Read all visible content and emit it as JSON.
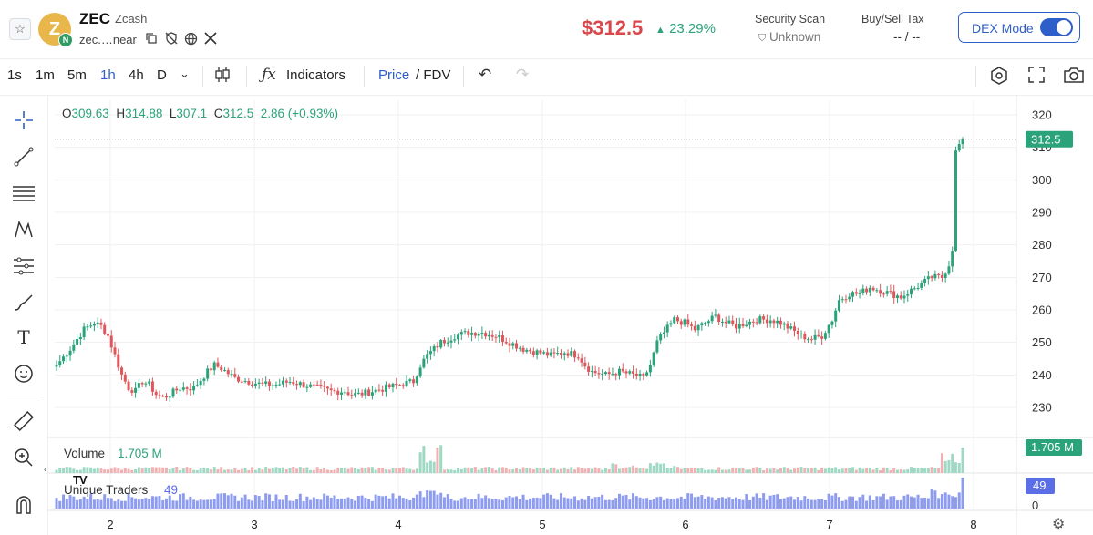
{
  "header": {
    "symbol": "ZEC",
    "name": "Zcash",
    "logo_letter": "Z",
    "chain_badge": "N",
    "address": "zec.…near",
    "price": "$312.5",
    "change": "23.29%",
    "change_arrow": "▲",
    "security_label": "Security Scan",
    "security_value": "Unknown",
    "tax_label": "Buy/Sell Tax",
    "tax_value": "-- / --",
    "dex_mode_label": "DEX Mode",
    "dex_mode_on": true,
    "icons": [
      "copy-icon",
      "shield-off-icon",
      "globe-icon",
      "x-twitter-icon"
    ]
  },
  "toolbar": {
    "timeframes": [
      "1s",
      "1m",
      "5m",
      "1h",
      "4h",
      "D"
    ],
    "active_timeframe": "1h",
    "indicators_label": "Indicators",
    "price_label": "Price",
    "slash": "/",
    "fdv_label": "FDV"
  },
  "legend": {
    "open_key": "O",
    "open": "309.63",
    "high_key": "H",
    "high": "314.88",
    "low_key": "L",
    "low": "307.1",
    "close_key": "C",
    "close": "312.5",
    "change": "2.86 (+0.93%)"
  },
  "volume": {
    "label": "Volume",
    "value": "1.705 M",
    "axis_badge": "1.705 M"
  },
  "traders": {
    "label": "Unique Traders",
    "value": "49",
    "axis_badge": "49",
    "axis_zero": "0"
  },
  "tv_logo": "TV",
  "colors": {
    "up": "#2aa37a",
    "down": "#e0575b",
    "accent": "#2d5ec9",
    "traders": "#8e9cf0"
  },
  "chart_data": {
    "type": "candlestick",
    "title": "",
    "xlabel": "",
    "ylabel": "",
    "x_ticks": [
      "2",
      "3",
      "4",
      "5",
      "6",
      "7",
      "8"
    ],
    "y_ticks": [
      230,
      240,
      250,
      260,
      270,
      280,
      290,
      300,
      310,
      320
    ],
    "ylim": [
      225,
      325
    ],
    "last_price": 312.5,
    "last_price_label": "312.5",
    "grid": true,
    "anchors_close": [
      [
        0,
        243
      ],
      [
        4,
        248
      ],
      [
        8,
        254
      ],
      [
        11,
        256
      ],
      [
        13,
        255
      ],
      [
        15,
        252
      ],
      [
        17,
        246
      ],
      [
        19,
        240
      ],
      [
        21,
        236
      ],
      [
        23,
        235
      ],
      [
        25,
        238
      ],
      [
        27,
        237
      ],
      [
        29,
        234
      ],
      [
        31,
        233
      ],
      [
        33,
        234
      ],
      [
        36,
        236
      ],
      [
        40,
        236
      ],
      [
        44,
        241
      ],
      [
        46,
        243
      ],
      [
        48,
        242
      ],
      [
        52,
        239
      ],
      [
        56,
        238
      ],
      [
        60,
        237
      ],
      [
        64,
        237
      ],
      [
        68,
        238
      ],
      [
        72,
        237
      ],
      [
        76,
        236
      ],
      [
        80,
        235
      ],
      [
        84,
        235
      ],
      [
        86,
        234
      ],
      [
        88,
        234
      ],
      [
        92,
        235
      ],
      [
        96,
        236
      ],
      [
        100,
        237
      ],
      [
        104,
        238
      ],
      [
        106,
        243
      ],
      [
        108,
        246
      ],
      [
        110,
        248
      ],
      [
        112,
        250
      ],
      [
        116,
        252
      ],
      [
        120,
        253
      ],
      [
        124,
        253
      ],
      [
        128,
        252
      ],
      [
        132,
        250
      ],
      [
        136,
        248
      ],
      [
        140,
        247
      ],
      [
        144,
        246
      ],
      [
        148,
        247
      ],
      [
        152,
        246
      ],
      [
        154,
        243
      ],
      [
        156,
        241
      ],
      [
        160,
        240
      ],
      [
        164,
        241
      ],
      [
        168,
        240
      ],
      [
        171,
        239
      ],
      [
        173,
        243
      ],
      [
        175,
        250
      ],
      [
        177,
        253
      ],
      [
        180,
        257
      ],
      [
        183,
        256
      ],
      [
        186,
        254
      ],
      [
        189,
        256
      ],
      [
        192,
        258
      ],
      [
        195,
        256
      ],
      [
        198,
        255
      ],
      [
        201,
        256
      ],
      [
        204,
        257
      ],
      [
        208,
        257
      ],
      [
        211,
        256
      ],
      [
        214,
        254
      ],
      [
        217,
        252
      ],
      [
        220,
        251
      ],
      [
        223,
        252
      ],
      [
        226,
        257
      ],
      [
        228,
        263
      ],
      [
        231,
        265
      ],
      [
        234,
        265
      ],
      [
        237,
        267
      ],
      [
        240,
        266
      ],
      [
        243,
        265
      ],
      [
        246,
        264
      ],
      [
        249,
        266
      ],
      [
        252,
        268
      ],
      [
        255,
        270
      ],
      [
        258,
        270
      ],
      [
        260,
        274
      ],
      [
        261,
        279
      ],
      [
        262,
        309
      ],
      [
        263,
        311
      ],
      [
        264,
        312.5
      ]
    ],
    "volume_peak": "1.705 M",
    "traders_last": 49
  }
}
